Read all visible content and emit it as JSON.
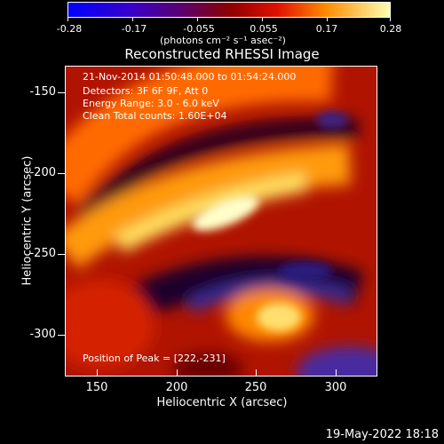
{
  "colorbar": {
    "labels": [
      "-0.28",
      "-0.17",
      "-0.055",
      "0.055",
      "0.17",
      "0.28"
    ],
    "units": "(photons cm⁻² s⁻¹ asec⁻²)"
  },
  "title": "Reconstructed RHESSI Image",
  "annotations": {
    "time_range": "21-Nov-2014 01:50:48.000 to 01:54:24.000",
    "detectors": "Detectors: 3F 6F 9F, Att 0",
    "energy": "Energy Range: 3.0 - 6.0 keV",
    "clean": "Clean     Total counts: 1.60E+04",
    "peak": "Position of Peak = [222,-231]"
  },
  "axes": {
    "xlabel": "Heliocentric X (arcsec)",
    "ylabel": "Heliocentric Y (arcsec)",
    "xticks": [
      "150",
      "200",
      "250",
      "300"
    ],
    "yticks": [
      "-150",
      "-200",
      "-250",
      "-300"
    ]
  },
  "footer": "19-May-2022 18:18"
}
